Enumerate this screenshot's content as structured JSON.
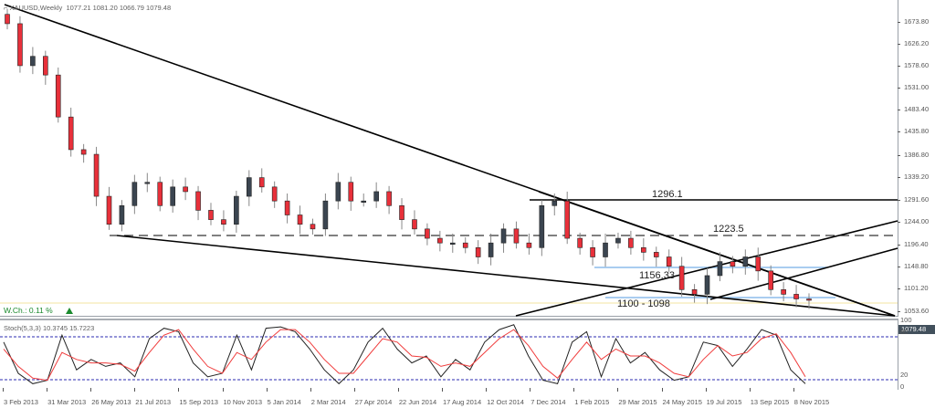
{
  "header": {
    "symbol": "XAUUSD,Weekly",
    "ohlc": "1077.21 1081.20 1066.79 1079.48"
  },
  "price_axis": {
    "labels": [
      "1673.80",
      "1626.20",
      "1578.60",
      "1531.00",
      "1483.40",
      "1435.80",
      "1386.80",
      "1339.20",
      "1291.60",
      "1244.00",
      "1196.40",
      "1148.80",
      "1101.20",
      "1053.60"
    ],
    "current_price": "1079.48"
  },
  "stoch_axis": {
    "labels": [
      "100",
      "80",
      "20",
      "0"
    ]
  },
  "time_axis": {
    "labels": [
      "3 Feb 2013",
      "31 Mar 2013",
      "26 May 2013",
      "21 Jul 2013",
      "15 Sep 2013",
      "10 Nov 2013",
      "5 Jan 2014",
      "2 Mar 2014",
      "27 Apr 2014",
      "22 Jun 2014",
      "17 Aug 2014",
      "12 Oct 2014",
      "7 Dec 2014",
      "1 Feb 2015",
      "29 Mar 2015",
      "24 May 2015",
      "19 Jul 2015",
      "13 Sep 2015",
      "8 Nov 2015"
    ]
  },
  "annotations": {
    "level_1": "1296.1",
    "level_2": "1223.5",
    "level_3": "1156.33",
    "level_4": "1100 - 1098",
    "weekly_change": "W.Ch.: 0.11 %",
    "weekly_change_icon": "up-triangle-icon"
  },
  "indicator": {
    "title": "Stoch(5,3,3) 10.3745 15.7223"
  },
  "colors": {
    "bull_candle": "#3b4550",
    "bear_candle": "#e8303a",
    "trendline": "#000000",
    "support_band": "#a9cdf0",
    "stoch_main": "#222222",
    "stoch_signal": "#f03c3c",
    "stoch_levels": "#2b2bb0",
    "weekly_change": "#1b8a2e"
  },
  "chart_data": [
    {
      "type": "candlestick",
      "title": "XAUUSD,Weekly",
      "ohlc_last": {
        "open": 1077.21,
        "high": 1081.2,
        "low": 1066.79,
        "close": 1079.48
      },
      "ylim": [
        1040,
        1700
      ],
      "x_labels": [
        "3 Feb 2013",
        "31 Mar 2013",
        "26 May 2013",
        "21 Jul 2013",
        "15 Sep 2013",
        "10 Nov 2013",
        "5 Jan 2014",
        "2 Mar 2014",
        "27 Apr 2014",
        "22 Jun 2014",
        "17 Aug 2014",
        "12 Oct 2014",
        "7 Dec 2014",
        "1 Feb 2015",
        "29 Mar 2015",
        "24 May 2015",
        "19 Jul 2015",
        "13 Sep 2015",
        "8 Nov 2015"
      ],
      "approx_close_path": [
        1670,
        1580,
        1600,
        1560,
        1470,
        1400,
        1390,
        1300,
        1240,
        1280,
        1330,
        1330,
        1280,
        1320,
        1310,
        1270,
        1250,
        1240,
        1300,
        1340,
        1320,
        1290,
        1260,
        1240,
        1230,
        1290,
        1330,
        1290,
        1290,
        1310,
        1280,
        1250,
        1230,
        1210,
        1200,
        1200,
        1190,
        1170,
        1200,
        1230,
        1200,
        1190,
        1280,
        1290,
        1210,
        1190,
        1170,
        1200,
        1210,
        1190,
        1180,
        1170,
        1150,
        1100,
        1090,
        1130,
        1160,
        1150,
        1170,
        1140,
        1100,
        1090,
        1080,
        1079.48
      ],
      "horizontal_levels": [
        {
          "label": "1296.1",
          "value": 1296.1,
          "style": "solid"
        },
        {
          "label": "1223.5",
          "value": 1223.5,
          "style": "dashed"
        },
        {
          "label": "1156.33",
          "value": 1156.33,
          "style": "support-band"
        },
        {
          "label": "1100 - 1098",
          "value": 1099,
          "style": "support-band"
        }
      ],
      "trendlines": [
        {
          "from": [
            "3 Feb 2013",
            1690
          ],
          "to": [
            "8 Nov 2015",
            1050
          ]
        },
        {
          "from": [
            "26 May 2013",
            1225
          ],
          "to": [
            "8 Nov 2015",
            1050
          ]
        },
        {
          "from": [
            "1 Feb 2015",
            1296
          ],
          "to": [
            "8 Nov 2015",
            1050
          ]
        },
        {
          "from": [
            "12 Oct 2014",
            1045
          ],
          "to": [
            "8 Nov 2015",
            1250
          ]
        },
        {
          "from": [
            "19 Jul 2015",
            1090
          ],
          "to": [
            "8 Nov 2015",
            1190
          ]
        }
      ]
    },
    {
      "type": "line",
      "title": "Stoch(5,3,3) 10.3745 15.7223",
      "ylim": [
        0,
        100
      ],
      "levels": [
        80,
        20
      ],
      "series": [
        {
          "name": "%K",
          "last": 10.3745,
          "values": [
            70,
            25,
            10,
            15,
            80,
            30,
            45,
            35,
            40,
            20,
            75,
            90,
            85,
            40,
            20,
            25,
            80,
            30,
            90,
            92,
            85,
            60,
            30,
            10,
            30,
            70,
            90,
            60,
            40,
            50,
            20,
            45,
            30,
            70,
            88,
            95,
            50,
            15,
            10,
            70,
            85,
            20,
            75,
            40,
            55,
            30,
            15,
            20,
            70,
            65,
            35,
            60,
            88,
            80,
            30,
            10
          ]
        },
        {
          "name": "%D",
          "last": 15.7223,
          "values": [
            60,
            35,
            18,
            15,
            55,
            45,
            40,
            40,
            38,
            28,
            55,
            80,
            88,
            60,
            35,
            25,
            55,
            45,
            70,
            88,
            88,
            70,
            45,
            25,
            25,
            50,
            75,
            70,
            50,
            48,
            35,
            40,
            35,
            55,
            75,
            88,
            65,
            35,
            18,
            45,
            70,
            45,
            60,
            50,
            50,
            40,
            25,
            20,
            45,
            65,
            50,
            55,
            75,
            82,
            55,
            20
          ]
        }
      ]
    }
  ]
}
